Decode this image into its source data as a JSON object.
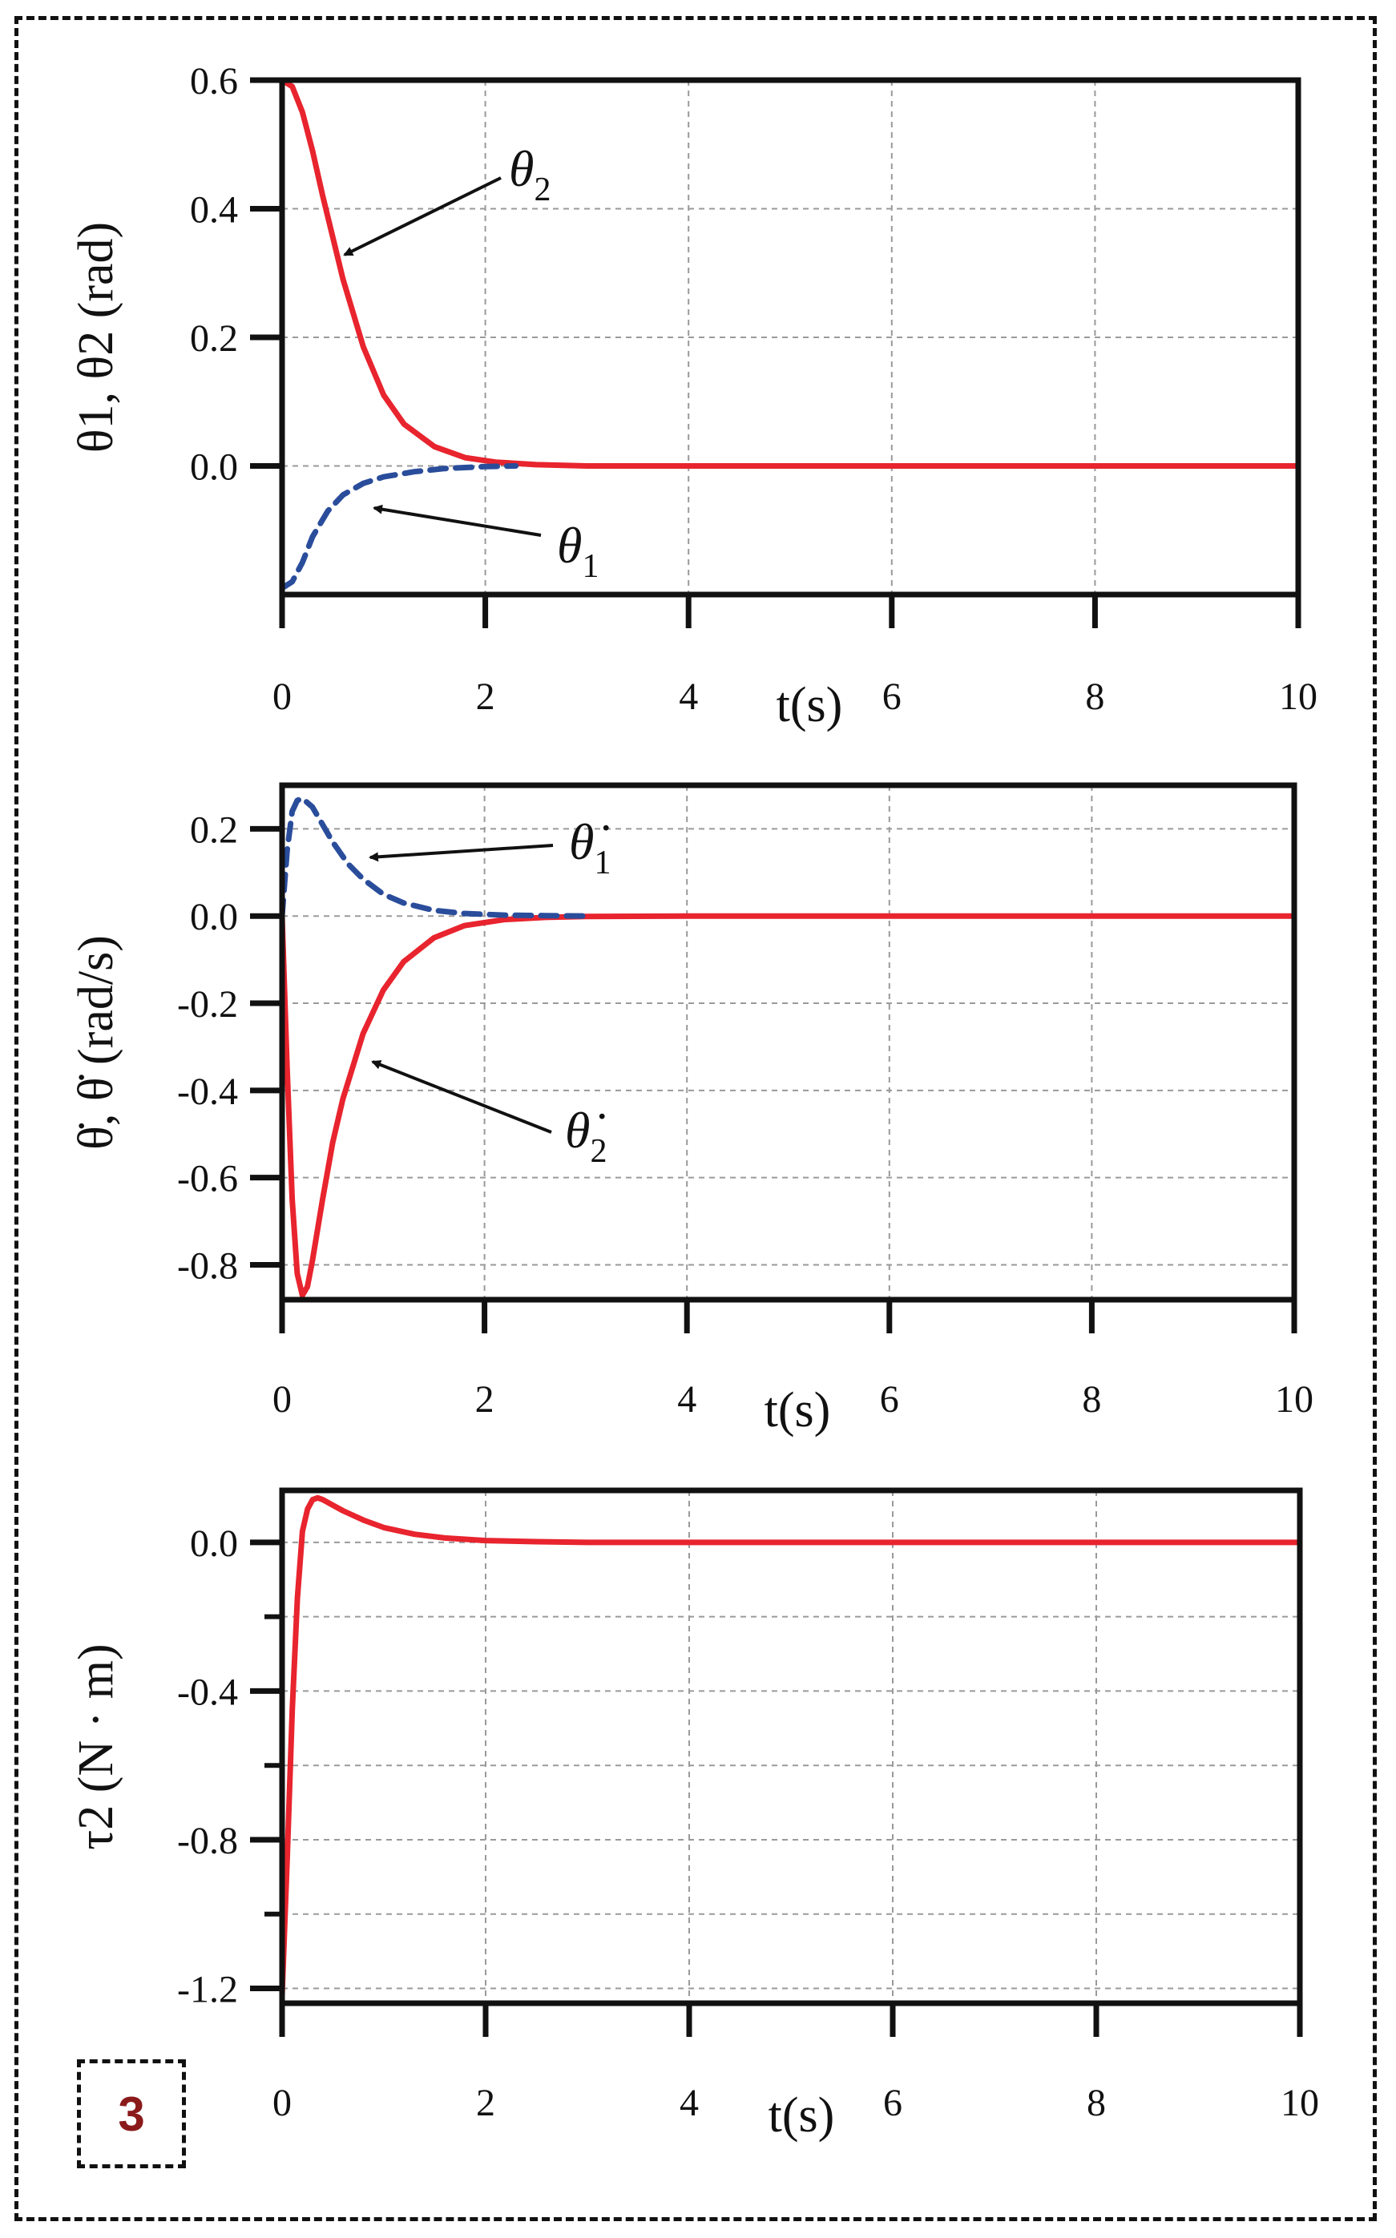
{
  "badge": "3",
  "chart_data": [
    {
      "type": "line",
      "title": "",
      "xlabel": "t(s)",
      "ylabel": "θ1, θ2 (rad)",
      "xlim": [
        0,
        10
      ],
      "ylim": [
        -0.2,
        0.6
      ],
      "xticks": [
        0,
        2,
        4,
        6,
        8,
        10
      ],
      "xtick_labels": [
        "0",
        "2",
        "4",
        "6",
        "8",
        "10"
      ],
      "yticks": [
        0.0,
        0.2,
        0.4,
        0.6
      ],
      "ytick_labels": [
        "0.0",
        "0.2",
        "0.4",
        "0.6"
      ],
      "grid": true,
      "series": [
        {
          "name": "θ2",
          "color": "#e8242e",
          "dash": "solid",
          "x": [
            0,
            0.1,
            0.2,
            0.3,
            0.4,
            0.5,
            0.6,
            0.8,
            1.0,
            1.2,
            1.5,
            1.8,
            2.1,
            2.5,
            3.0,
            4.0,
            10.0
          ],
          "y": [
            0.6,
            0.59,
            0.55,
            0.49,
            0.42,
            0.355,
            0.29,
            0.185,
            0.11,
            0.065,
            0.03,
            0.013,
            0.006,
            0.002,
            0.0,
            0.0,
            0.0
          ]
        },
        {
          "name": "θ1",
          "color": "#2a4d9b",
          "dash": "dashed",
          "x": [
            0,
            0.1,
            0.2,
            0.3,
            0.45,
            0.6,
            0.8,
            1.0,
            1.3,
            1.6,
            2.0,
            2.3
          ],
          "y": [
            -0.19,
            -0.18,
            -0.15,
            -0.11,
            -0.07,
            -0.045,
            -0.027,
            -0.017,
            -0.009,
            -0.004,
            -0.001,
            0.0
          ]
        }
      ],
      "annotations": [
        {
          "symbol": "θ",
          "sub": "2",
          "x": 0.5,
          "y": 0.34
        },
        {
          "symbol": "θ",
          "sub": "1",
          "x": 0.85,
          "y": -0.055
        }
      ]
    },
    {
      "type": "line",
      "title": "",
      "xlabel": "t(s)",
      "ylabel": "θ̇, θ̇ (rad/s)",
      "xlim": [
        0,
        10
      ],
      "ylim": [
        -0.88,
        0.3
      ],
      "xticks": [
        0,
        2,
        4,
        6,
        8,
        10
      ],
      "xtick_labels": [
        "0",
        "2",
        "4",
        "6",
        "8",
        "10"
      ],
      "yticks": [
        0.2,
        0.0,
        -0.2,
        -0.4,
        -0.6,
        -0.8
      ],
      "ytick_labels": [
        "0.2",
        "0.0",
        "-0.2",
        "-0.4",
        "-0.6",
        "-0.8"
      ],
      "grid": true,
      "series": [
        {
          "name": "θ̇2",
          "color": "#e8242e",
          "dash": "solid",
          "x": [
            0,
            0.05,
            0.1,
            0.15,
            0.2,
            0.25,
            0.3,
            0.4,
            0.5,
            0.6,
            0.8,
            1.0,
            1.2,
            1.5,
            1.8,
            2.2,
            2.6,
            3.0,
            4.0,
            10.0
          ],
          "y": [
            0,
            -0.35,
            -0.65,
            -0.82,
            -0.87,
            -0.85,
            -0.79,
            -0.65,
            -0.52,
            -0.42,
            -0.27,
            -0.17,
            -0.105,
            -0.05,
            -0.022,
            -0.008,
            -0.003,
            -0.001,
            0.0,
            0.0
          ]
        },
        {
          "name": "θ̇1",
          "color": "#2a4d9b",
          "dash": "dashed",
          "x": [
            0,
            0.05,
            0.1,
            0.15,
            0.2,
            0.3,
            0.4,
            0.5,
            0.65,
            0.8,
            1.0,
            1.2,
            1.5,
            1.8,
            2.2,
            2.6,
            3.0
          ],
          "y": [
            0,
            0.15,
            0.24,
            0.265,
            0.27,
            0.25,
            0.21,
            0.17,
            0.12,
            0.085,
            0.05,
            0.03,
            0.013,
            0.006,
            0.002,
            0.001,
            0.0
          ]
        }
      ],
      "annotations": [
        {
          "symbol": "θ̇",
          "sub": "1",
          "x": 0.8,
          "y": 0.12
        },
        {
          "symbol": "θ̇",
          "sub": "2",
          "x": 0.85,
          "y": -0.36
        }
      ]
    },
    {
      "type": "line",
      "title": "",
      "xlabel": "t(s)",
      "ylabel": "τ2 (N · m)",
      "xlim": [
        0,
        10
      ],
      "ylim": [
        -1.24,
        0.14
      ],
      "xticks": [
        0,
        2,
        4,
        6,
        8,
        10
      ],
      "xtick_labels": [
        "0",
        "2",
        "4",
        "6",
        "8",
        "10"
      ],
      "yticks": [
        0.0,
        -0.4,
        -0.8,
        -1.2
      ],
      "ytick_labels": [
        "0.0",
        "-0.4",
        "-0.8",
        "-1.2"
      ],
      "minor_yticks": [
        -0.2,
        -0.6,
        -1.0
      ],
      "grid": true,
      "series": [
        {
          "name": "τ2",
          "color": "#e8242e",
          "dash": "solid",
          "x": [
            0,
            0.05,
            0.1,
            0.15,
            0.2,
            0.25,
            0.3,
            0.35,
            0.4,
            0.5,
            0.6,
            0.8,
            1.0,
            1.3,
            1.6,
            2.0,
            2.5,
            3.0,
            4.0,
            10.0
          ],
          "y": [
            -1.22,
            -0.85,
            -0.45,
            -0.15,
            0.03,
            0.09,
            0.115,
            0.12,
            0.115,
            0.1,
            0.085,
            0.06,
            0.04,
            0.022,
            0.012,
            0.005,
            0.002,
            0.0,
            0.0,
            0.0
          ]
        }
      ]
    }
  ]
}
